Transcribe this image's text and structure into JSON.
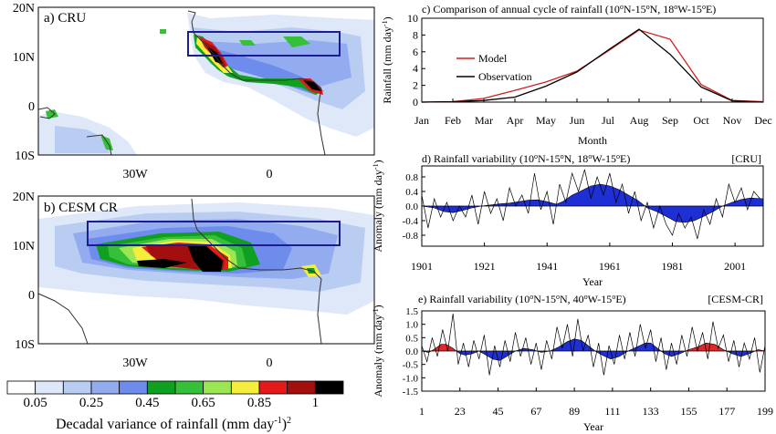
{
  "colors": {
    "model": "#d21f1f",
    "observation": "#000000",
    "positive": "#e3262b",
    "negative": "#1f2fd6",
    "box": "#1d1d8f",
    "land_line": "#333333"
  },
  "colorbar": {
    "colors": [
      "#ffffff",
      "#dfe8f8",
      "#b9cdf2",
      "#93acf0",
      "#6d8cec",
      "#10a01f",
      "#36c03a",
      "#9de653",
      "#f6ee3c",
      "#e41a1a",
      "#a30f0f",
      "#000000"
    ],
    "ticks": [
      "0.05",
      "0.25",
      "0.45",
      "0.65",
      "0.85",
      "1"
    ],
    "label": "Decadal variance of rainfall (mm day",
    "label_sup": "-1",
    "label_close": ")",
    "label_sup2": "2"
  },
  "maps": [
    {
      "title": "a) CRU",
      "lat_labels": [
        "20N",
        "10N",
        "0",
        "10S"
      ],
      "lon_labels": [
        "30W",
        "0"
      ],
      "box_label": "10N-15N, 18W-15E"
    },
    {
      "title": "b) CESM CR",
      "lat_labels": [
        "20N",
        "10N",
        "0",
        "10S"
      ],
      "lon_labels": [
        "30W",
        "0"
      ],
      "box_label": "10N-15N, 40W-15E"
    }
  ],
  "chart_data": [
    {
      "type": "line",
      "title": "c) Comparison of annual cycle of rainfall (10",
      "title_parts": [
        "c) Comparison of annual cycle of rainfall (10",
        "o",
        "N-15",
        "o",
        "N, 18",
        "o",
        "W-15",
        "o",
        "E)"
      ],
      "xlabel": "Month",
      "ylabel": "Rainfall (mm day",
      "ylabel_sup": "-1",
      "categories": [
        "Jan",
        "Feb",
        "Mar",
        "Apr",
        "May",
        "Jun",
        "Jul",
        "Aug",
        "Sep",
        "Oct",
        "Nov",
        "Dec"
      ],
      "ylim": [
        0,
        10
      ],
      "yticks": [
        0,
        2,
        4,
        6,
        8,
        10
      ],
      "legend_position": "left",
      "series": [
        {
          "name": "Model",
          "values": [
            0.0,
            0.05,
            0.45,
            1.4,
            2.4,
            3.7,
            6.1,
            8.6,
            7.5,
            2.1,
            0.2,
            0.05
          ]
        },
        {
          "name": "Observation",
          "values": [
            0.0,
            0.05,
            0.2,
            0.6,
            1.9,
            3.6,
            6.2,
            8.7,
            5.7,
            1.8,
            0.15,
            0.0
          ]
        }
      ]
    },
    {
      "type": "area",
      "title_parts": [
        "d) Rainfall variability (10",
        "o",
        "N-15",
        "o",
        "N, 18",
        "o",
        "W-15",
        "o",
        "E)"
      ],
      "tag": "[CRU]",
      "xlabel": "Year",
      "ylabel": "Anomaly (mm day",
      "ylabel_sup": "-1",
      "x_range": [
        1901,
        2010
      ],
      "xticks": [
        1901,
        1921,
        1941,
        1961,
        1981,
        2001
      ],
      "ylim": [
        -1.1,
        1.1
      ],
      "yticks": [
        0.8,
        0.4,
        0.0,
        -0.4,
        -0.8
      ],
      "ytick_labels": [
        "0.8",
        "0.4",
        "0.0",
        "-0.4",
        "-0.8"
      ],
      "smoothed": {
        "x": [
          1901,
          1905,
          1908,
          1911,
          1914,
          1917,
          1920,
          1923,
          1926,
          1929,
          1932,
          1935,
          1938,
          1941,
          1944,
          1946,
          1949,
          1952,
          1955,
          1958,
          1961,
          1964,
          1967,
          1970,
          1973,
          1976,
          1979,
          1982,
          1985,
          1988,
          1991,
          1994,
          1997,
          2000,
          2003,
          2006,
          2010
        ],
        "y": [
          0.0,
          -0.05,
          -0.15,
          -0.18,
          -0.12,
          -0.05,
          0.0,
          0.03,
          0.06,
          0.08,
          0.12,
          0.16,
          0.17,
          0.12,
          0.05,
          0.12,
          0.3,
          0.42,
          0.55,
          0.6,
          0.55,
          0.45,
          0.3,
          0.15,
          -0.05,
          -0.15,
          -0.28,
          -0.42,
          -0.45,
          -0.4,
          -0.28,
          -0.15,
          0.0,
          0.1,
          0.18,
          0.22,
          0.2
        ]
      },
      "raw": {
        "x": [
          1901,
          1903,
          1905,
          1907,
          1909,
          1911,
          1913,
          1915,
          1917,
          1919,
          1921,
          1923,
          1925,
          1927,
          1929,
          1931,
          1933,
          1935,
          1937,
          1939,
          1941,
          1943,
          1945,
          1947,
          1949,
          1951,
          1953,
          1955,
          1957,
          1959,
          1961,
          1963,
          1965,
          1967,
          1969,
          1971,
          1973,
          1975,
          1977,
          1979,
          1981,
          1983,
          1985,
          1987,
          1989,
          1991,
          1993,
          1995,
          1997,
          1999,
          2001,
          2003,
          2005,
          2007,
          2009
        ],
        "y": [
          0.3,
          -0.6,
          0.2,
          -0.3,
          0.1,
          -0.4,
          0.0,
          -0.3,
          0.3,
          -0.5,
          0.4,
          -0.2,
          0.2,
          -0.4,
          0.5,
          0.0,
          0.3,
          -0.2,
          0.9,
          -0.1,
          0.4,
          -0.5,
          0.6,
          0.1,
          0.9,
          0.4,
          1.0,
          0.2,
          0.8,
          0.3,
          0.9,
          0.1,
          0.6,
          -0.2,
          0.4,
          -0.4,
          0.1,
          -0.6,
          0.0,
          -0.5,
          -0.8,
          -0.2,
          -0.6,
          -0.3,
          -0.9,
          -0.1,
          -0.5,
          0.2,
          -0.3,
          0.6,
          0.1,
          0.5,
          -0.1,
          0.4,
          0.2
        ]
      }
    },
    {
      "type": "area",
      "title_parts": [
        "e) Rainfall variability (10",
        "o",
        "N-15",
        "o",
        "N, 40",
        "o",
        "W-15",
        "o",
        "E)"
      ],
      "tag": "[CESM-CR]",
      "xlabel": "Year",
      "ylabel": "Anomaly (mm day",
      "ylabel_sup": "-1",
      "x_range": [
        1,
        199
      ],
      "xticks": [
        1,
        23,
        45,
        67,
        89,
        111,
        133,
        155,
        177,
        199
      ],
      "ylim": [
        -1.5,
        1.5
      ],
      "yticks": [
        1.5,
        1.0,
        0.5,
        0.0,
        -0.5,
        -1.0,
        -1.5
      ],
      "ytick_labels": [
        "1.5",
        "1.0",
        "0.5",
        "0.0",
        "-0.5",
        "-1.0",
        "-1.5"
      ],
      "smoothed": {
        "x": [
          1,
          5,
          9,
          12,
          15,
          19,
          23,
          26,
          30,
          34,
          38,
          42,
          46,
          50,
          55,
          60,
          65,
          70,
          75,
          80,
          85,
          89,
          93,
          97,
          101,
          105,
          110,
          115,
          120,
          125,
          130,
          133,
          137,
          141,
          145,
          150,
          155,
          160,
          165,
          170,
          175,
          180,
          185,
          190,
          195,
          199
        ],
        "y": [
          0.0,
          -0.05,
          0.1,
          0.25,
          0.25,
          0.1,
          -0.1,
          -0.15,
          -0.1,
          0.0,
          -0.15,
          -0.3,
          -0.35,
          -0.2,
          0.0,
          0.1,
          0.05,
          -0.05,
          0.0,
          0.15,
          0.35,
          0.45,
          0.4,
          0.2,
          0.0,
          -0.15,
          -0.3,
          -0.2,
          0.0,
          0.15,
          0.3,
          0.3,
          0.1,
          -0.1,
          -0.2,
          -0.1,
          0.05,
          0.15,
          0.3,
          0.25,
          0.05,
          -0.1,
          -0.2,
          -0.1,
          0.05,
          0.0
        ]
      },
      "raw": {
        "x": [
          1,
          4,
          7,
          10,
          13,
          16,
          19,
          22,
          25,
          28,
          31,
          34,
          37,
          40,
          43,
          46,
          49,
          52,
          55,
          58,
          61,
          64,
          67,
          70,
          73,
          76,
          79,
          82,
          85,
          88,
          91,
          94,
          97,
          100,
          103,
          106,
          109,
          112,
          115,
          118,
          121,
          124,
          127,
          130,
          133,
          136,
          139,
          142,
          145,
          148,
          151,
          154,
          157,
          160,
          163,
          166,
          169,
          172,
          175,
          178,
          181,
          184,
          187,
          190,
          193,
          196,
          199
        ],
        "y": [
          0.2,
          -0.4,
          0.5,
          -0.2,
          0.8,
          0.0,
          1.4,
          -0.5,
          0.3,
          -0.6,
          0.4,
          -0.3,
          0.6,
          -0.9,
          0.2,
          -0.6,
          0.4,
          -0.4,
          0.7,
          -0.2,
          0.5,
          -0.5,
          0.3,
          -0.7,
          0.4,
          -0.3,
          0.9,
          0.1,
          1.0,
          -0.2,
          1.2,
          0.0,
          0.6,
          -0.6,
          0.3,
          -0.9,
          0.2,
          -0.5,
          0.6,
          -0.3,
          0.7,
          -0.2,
          1.0,
          0.1,
          0.8,
          -0.4,
          0.5,
          -0.7,
          0.3,
          -0.5,
          0.6,
          -0.2,
          0.9,
          0.0,
          0.7,
          -0.3,
          1.1,
          0.1,
          0.6,
          -0.4,
          0.4,
          -0.6,
          0.3,
          -0.3,
          0.5,
          -0.8,
          0.2
        ]
      }
    }
  ]
}
